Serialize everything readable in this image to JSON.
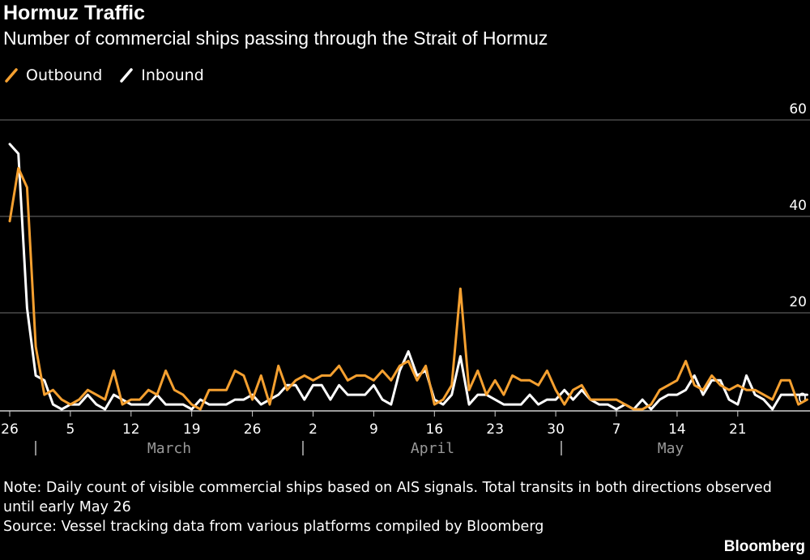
{
  "title": "Hormuz Traffic",
  "subtitle": "Number of commercial ships passing through the Strait of Hormuz",
  "legend": [
    {
      "name": "Outbound",
      "color": "#f5a030"
    },
    {
      "name": "Inbound",
      "color": "#ffffff"
    }
  ],
  "note": "Note: Daily count of visible commercial ships based on AIS signals. Total transits in both directions observed until early May 26",
  "source": "Source: Vessel tracking data from various platforms compiled by Bloomberg",
  "brand": "Bloomberg",
  "chart_data": {
    "type": "line",
    "y_ticks": [
      0,
      20,
      40,
      60
    ],
    "ylim": [
      -1,
      62
    ],
    "x_tick_labels": [
      "26",
      "5",
      "12",
      "19",
      "26",
      "2",
      "9",
      "16",
      "23",
      "30",
      "7",
      "14",
      "21"
    ],
    "month_labels": [
      "March",
      "April",
      "May"
    ],
    "grid": true,
    "legend_position": "top-left",
    "series": [
      {
        "name": "Outbound",
        "color": "#f5a030",
        "values": [
          39,
          50,
          46,
          13,
          3,
          4,
          2,
          1,
          2,
          4,
          3,
          2,
          8,
          1,
          2,
          2,
          4,
          3,
          8,
          4,
          3,
          1,
          0,
          4,
          4,
          4,
          8,
          7,
          2,
          7,
          1,
          9,
          4,
          6,
          7,
          6,
          7,
          7,
          9,
          6,
          7,
          7,
          6,
          8,
          6,
          9,
          10,
          6,
          9,
          1,
          2,
          5,
          25,
          4,
          8,
          3,
          6,
          3,
          7,
          6,
          6,
          5,
          8,
          4,
          1,
          4,
          5,
          2,
          2,
          2,
          2,
          1,
          0,
          0,
          1,
          4,
          5,
          6,
          10,
          5,
          4,
          7,
          5,
          4,
          5,
          4,
          4,
          3,
          2,
          6,
          6,
          1,
          2
        ]
      },
      {
        "name": "Inbound",
        "color": "#ffffff",
        "values": [
          55,
          53,
          21,
          7,
          6,
          1,
          0,
          1,
          1,
          3,
          1,
          0,
          3,
          2,
          1,
          1,
          1,
          3,
          1,
          1,
          1,
          0,
          2,
          1,
          1,
          1,
          2,
          2,
          3,
          1,
          2,
          3,
          5,
          5,
          2,
          5,
          5,
          2,
          5,
          3,
          3,
          3,
          5,
          2,
          1,
          8,
          12,
          7,
          8,
          2,
          1,
          3,
          11,
          1,
          3,
          3,
          2,
          1,
          1,
          1,
          3,
          1,
          2,
          2,
          4,
          2,
          4,
          2,
          1,
          1,
          0,
          1,
          0,
          2,
          0,
          2,
          3,
          3,
          4,
          7,
          3,
          6,
          6,
          2,
          1,
          7,
          3,
          2,
          0,
          3,
          3,
          3,
          3
        ]
      }
    ]
  }
}
